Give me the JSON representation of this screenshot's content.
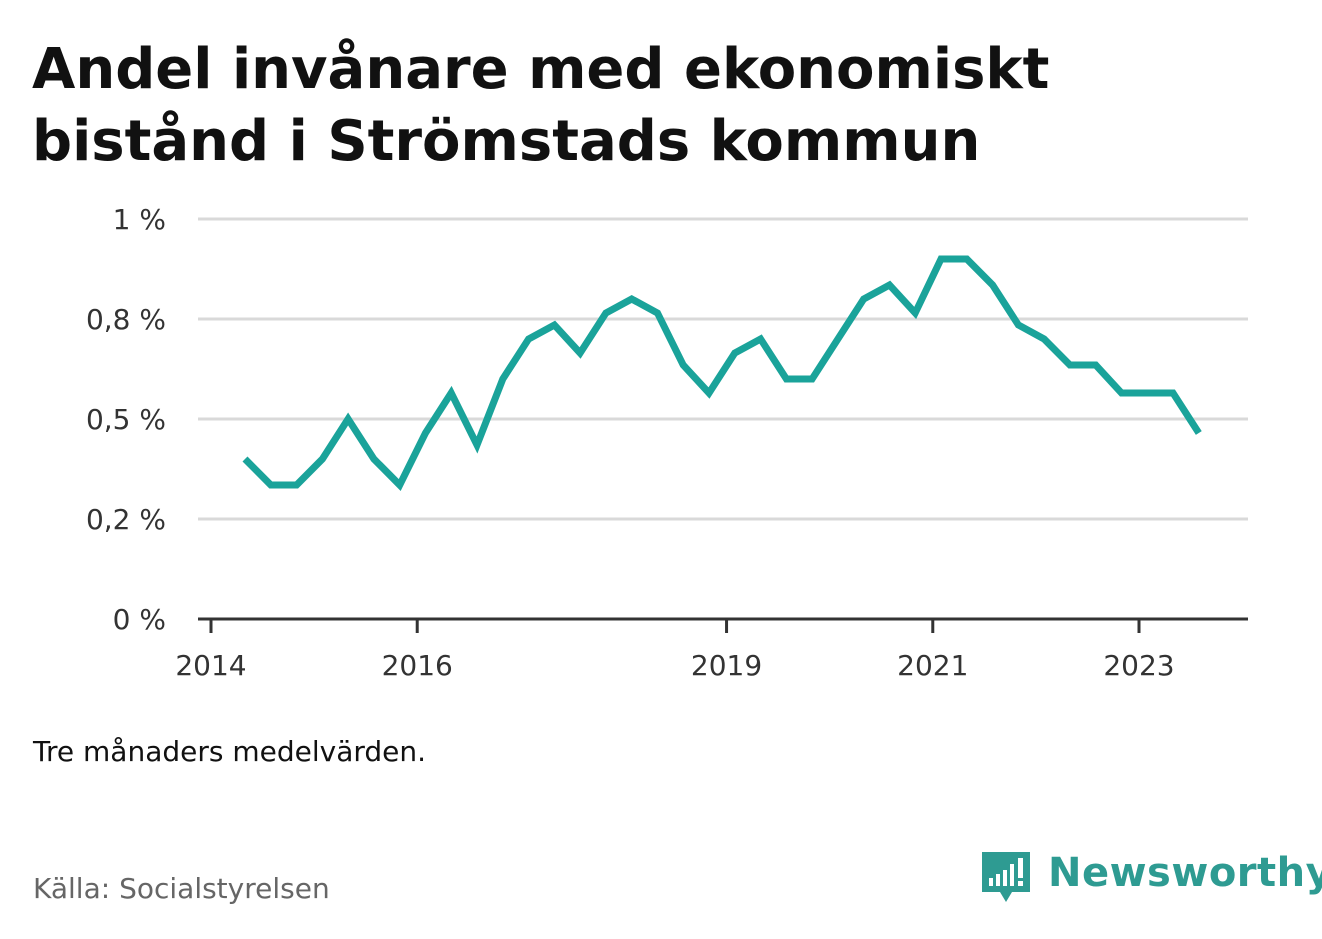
{
  "title": "Andel invånare med ekonomiskt bistånd i Strömstads kommun",
  "note": "Tre månaders medelvärden.",
  "source": "Källa: Socialstyrelsen",
  "brand": "Newsworthy",
  "colors": {
    "line": "#1aa39a",
    "brand": "#2e9b92",
    "grid": "#d9d9d9",
    "axis": "#333333"
  },
  "chart_data": {
    "type": "line",
    "title": "Andel invånare med ekonomiskt bistånd i Strömstads kommun",
    "xlabel": "",
    "ylabel": "",
    "ylim": [
      0,
      1
    ],
    "y_ticks": [
      0,
      0.25,
      0.5,
      0.75,
      1
    ],
    "y_tick_labels": [
      "0 %",
      "0,2 %",
      "0,5 %",
      "0,8 %",
      "1 %"
    ],
    "x_ticks": [
      2014,
      2016,
      2019,
      2021,
      2023
    ],
    "x_tick_labels": [
      "2014",
      "2016",
      "2019",
      "2021",
      "2023"
    ],
    "grid": true,
    "series": [
      {
        "x": [
          2014.33,
          2014.58,
          2014.83,
          2015.08,
          2015.33,
          2015.58,
          2015.83,
          2016.08,
          2016.33,
          2016.58,
          2016.83,
          2017.08,
          2017.33,
          2017.58,
          2017.83,
          2018.08,
          2018.33,
          2018.58,
          2018.83,
          2019.08,
          2019.33,
          2019.58,
          2019.83,
          2020.08,
          2020.33,
          2020.58,
          2020.83,
          2021.08,
          2021.33,
          2021.58,
          2021.83,
          2022.08,
          2022.33,
          2022.58,
          2022.83,
          2023.08,
          2023.33,
          2023.58
        ],
        "values": [
          0.4,
          0.335,
          0.335,
          0.4,
          0.5,
          0.4,
          0.335,
          0.465,
          0.565,
          0.435,
          0.6,
          0.7,
          0.735,
          0.665,
          0.765,
          0.8,
          0.765,
          0.635,
          0.565,
          0.665,
          0.7,
          0.6,
          0.6,
          0.7,
          0.8,
          0.835,
          0.765,
          0.9,
          0.9,
          0.835,
          0.735,
          0.7,
          0.635,
          0.635,
          0.565,
          0.565,
          0.565,
          0.465
        ]
      }
    ]
  }
}
